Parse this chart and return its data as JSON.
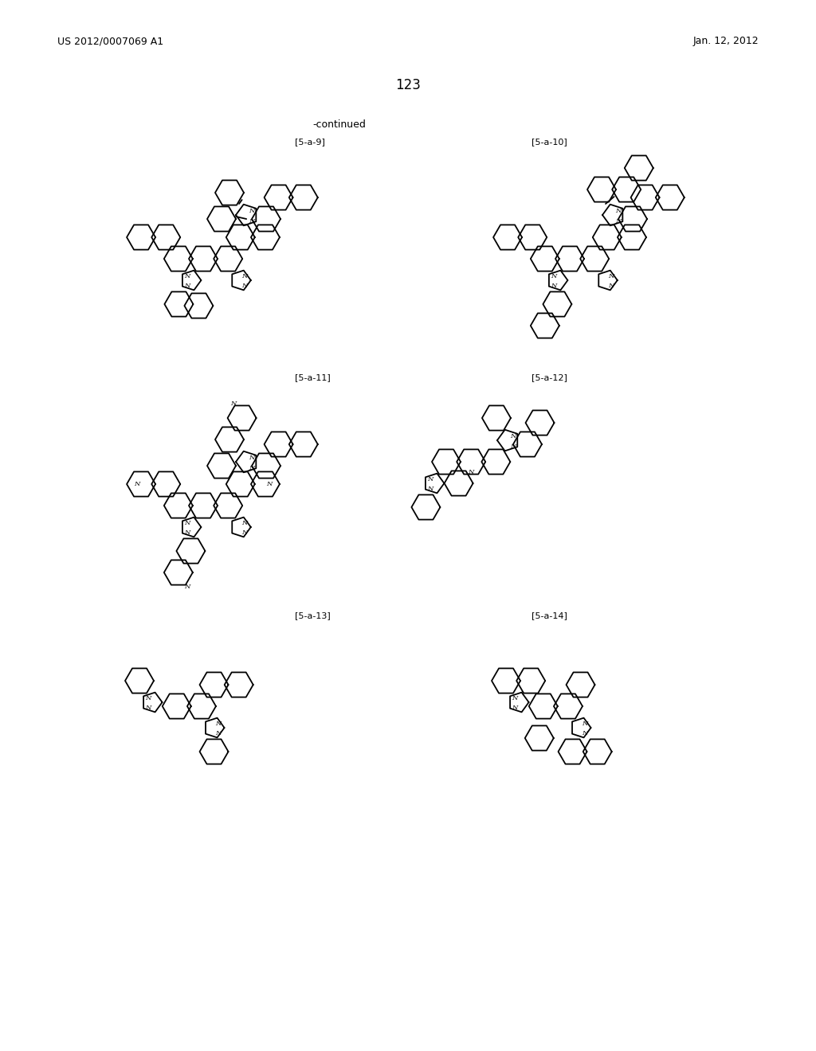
{
  "page_number": "123",
  "header_left": "US 2012/0007069 A1",
  "header_right": "Jan. 12, 2012",
  "continued_label": "-continued",
  "labels": [
    "[5-a-9]",
    "[5-a-10]",
    "[5-a-11]",
    "[5-a-12]",
    "[5-a-13]",
    "[5-a-14]"
  ],
  "bg_color": "#ffffff",
  "text_color": "#000000",
  "line_color": "#000000",
  "font_size_header": 9,
  "font_size_label": 8,
  "font_size_page": 12,
  "fig_width": 10.24,
  "fig_height": 13.2
}
